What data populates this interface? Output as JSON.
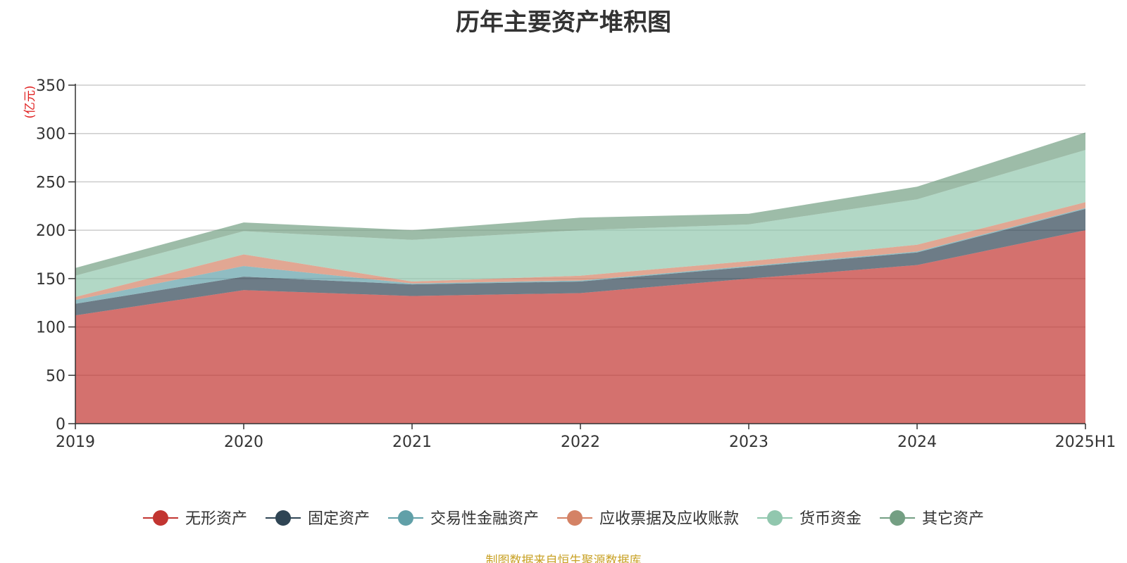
{
  "chart_data": {
    "type": "area",
    "stacked": true,
    "title": "历年主要资产堆积图",
    "ylabel": "(亿元)",
    "xlabel": "",
    "ylim": [
      0,
      350
    ],
    "yticks": [
      0,
      50,
      100,
      150,
      200,
      250,
      300,
      350
    ],
    "categories": [
      "2019",
      "2020",
      "2021",
      "2022",
      "2023",
      "2024",
      "2025H1"
    ],
    "grid": true,
    "legend_position": "bottom",
    "series": [
      {
        "name": "无形资产",
        "color": "#c23531",
        "values": [
          112,
          138,
          132,
          135,
          150,
          164,
          200
        ]
      },
      {
        "name": "固定资产",
        "color": "#2f4554",
        "values": [
          12,
          14,
          12,
          12,
          12,
          13,
          22
        ]
      },
      {
        "name": "交易性金融资产",
        "color": "#61a0a8",
        "values": [
          4,
          11,
          1,
          1,
          1,
          1,
          1
        ]
      },
      {
        "name": "应收票据及应收账款",
        "color": "#d48265",
        "values": [
          3,
          12,
          2,
          5,
          5,
          7,
          6
        ]
      },
      {
        "name": "货币资金",
        "color": "#91c7ae",
        "values": [
          22,
          24,
          43,
          47,
          38,
          47,
          54
        ]
      },
      {
        "name": "其它资产",
        "color": "#749f83",
        "values": [
          8,
          9,
          10,
          13,
          11,
          13,
          18
        ]
      }
    ]
  },
  "source_note": "制图数据来自恒生聚源数据库"
}
